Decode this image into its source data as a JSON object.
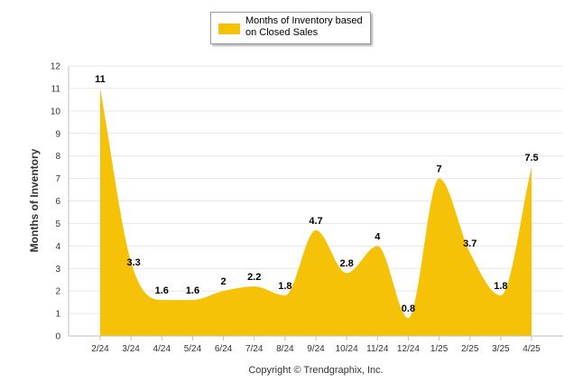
{
  "chart_data": {
    "type": "area",
    "categories": [
      "2/24",
      "3/24",
      "4/24",
      "5/24",
      "6/24",
      "7/24",
      "8/24",
      "9/24",
      "10/24",
      "11/24",
      "12/24",
      "1/25",
      "2/25",
      "3/25",
      "4/25"
    ],
    "series": [
      {
        "name": "Months of Inventory based on Closed Sales",
        "values": [
          11,
          3.3,
          1.6,
          1.6,
          2,
          2.2,
          1.8,
          4.7,
          2.8,
          4,
          0.8,
          7,
          3.7,
          1.8,
          7.5
        ],
        "labels": [
          "11",
          "3.3",
          "1.6",
          "1.6",
          "2",
          "2.2",
          "1.8",
          "4.7",
          "2.8",
          "4",
          "0.8",
          "7",
          "3.7",
          "1.8",
          "7.5"
        ]
      }
    ],
    "yticks": [
      "0",
      "1",
      "2",
      "3",
      "4",
      "5",
      "6",
      "7",
      "8",
      "9",
      "10",
      "11",
      "12"
    ],
    "ylim": [
      0,
      12
    ],
    "ylabel": "Months of Inventory",
    "xlabel": "",
    "legend_position": "top-center",
    "grid": true,
    "colors": {
      "fill": "#f5c208",
      "grid": "#e6e6e6",
      "axis": "#c0c0c0"
    }
  },
  "legend": {
    "line1": "Months of Inventory based",
    "line2": "on Closed Sales"
  },
  "footer": {
    "copyright": "Copyright © Trendgraphix, Inc."
  }
}
